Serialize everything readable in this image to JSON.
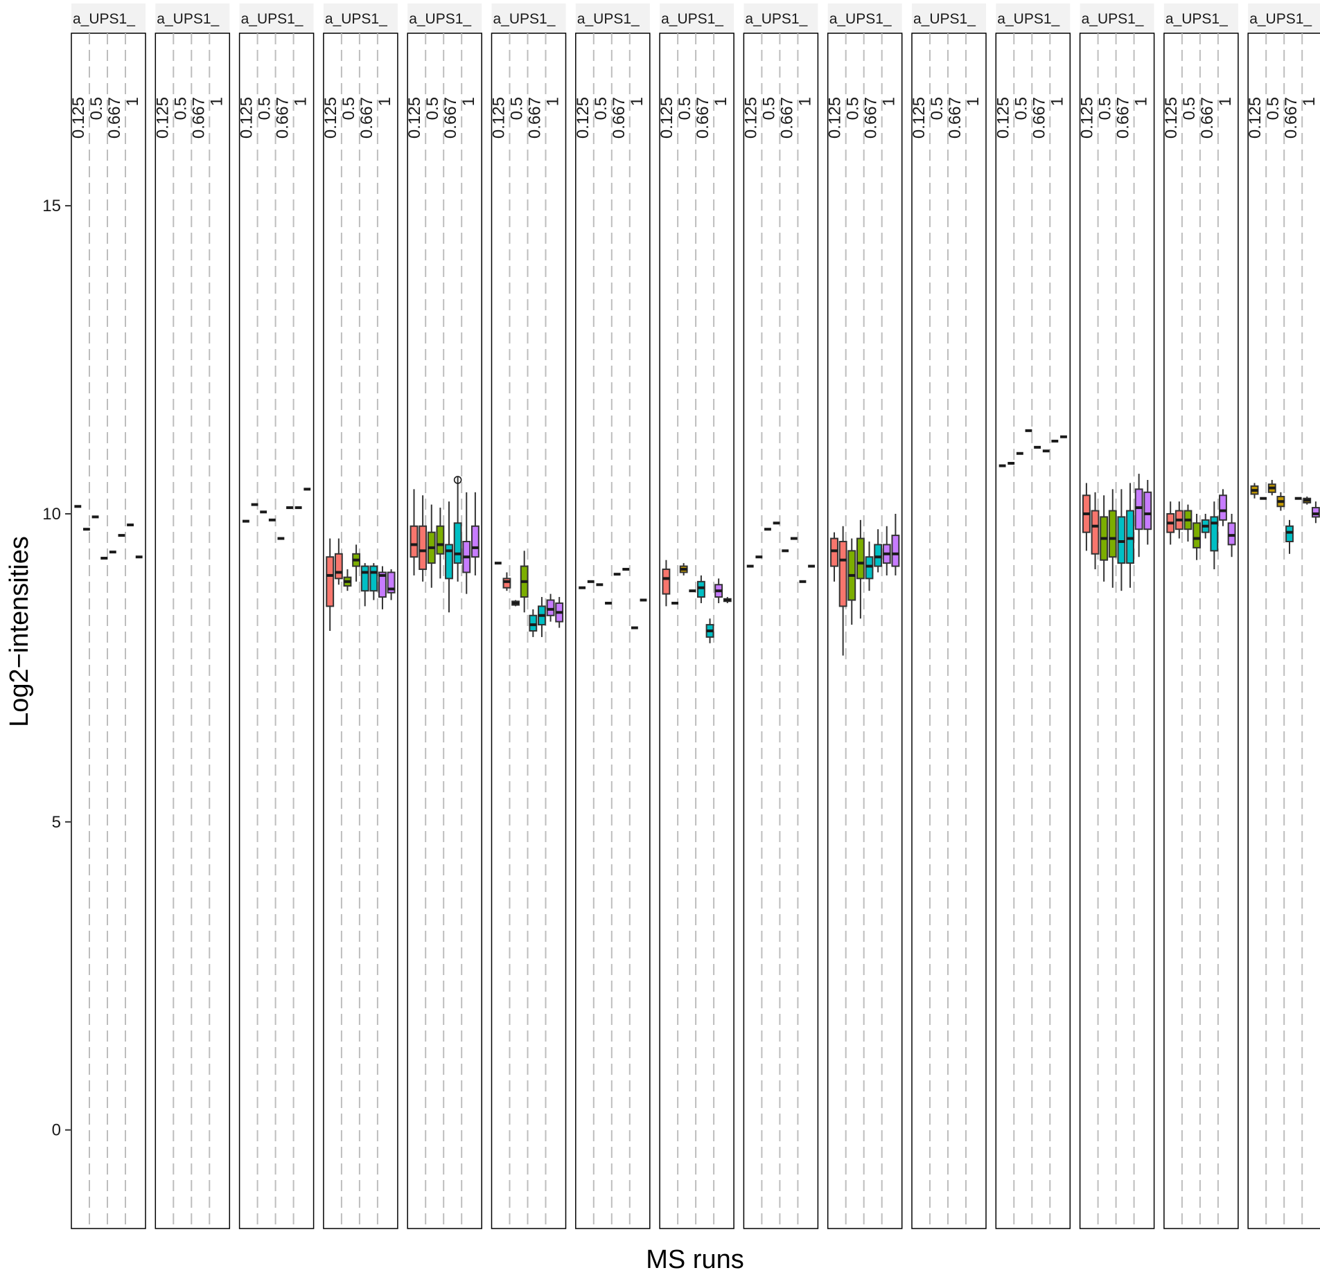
{
  "chart_data": {
    "type": "boxplot",
    "xlabel": "MS runs",
    "ylabel": "Log2−intensities",
    "ylim": [
      -1.6,
      17.8
    ],
    "y_ticks": [
      0,
      5,
      10,
      15
    ],
    "grid": false,
    "conc_levels": [
      "0.125",
      "0.5",
      "0.667",
      "1"
    ],
    "run_colors": [
      "#F8766D",
      "#C49A00",
      "#7CAE00",
      "#00BFC4",
      "#00A9FF",
      "#C77CFF"
    ],
    "panels": [
      {
        "label": "a_UPS1_",
        "boxes": [
          {
            "med": 10.12
          },
          {
            "med": 9.75
          },
          {
            "med": 9.95
          },
          {
            "med": 9.28
          },
          {
            "med": 9.38
          },
          {
            "med": 9.65
          },
          {
            "med": 9.82
          },
          {
            "med": 9.3
          }
        ]
      },
      {
        "label": "a_UPS1_",
        "boxes": []
      },
      {
        "label": "a_UPS1_",
        "boxes": [
          {
            "med": 9.88
          },
          {
            "med": 10.15
          },
          {
            "med": 10.03
          },
          {
            "med": 9.9
          },
          {
            "med": 9.6
          },
          {
            "med": 10.1
          },
          {
            "med": 10.1
          },
          {
            "med": 10.4
          }
        ]
      },
      {
        "label": "a_UPS1_",
        "boxes": [
          {
            "min": 8.1,
            "q1": 8.5,
            "med": 9.0,
            "q3": 9.3,
            "max": 9.6,
            "c": 0
          },
          {
            "min": 8.85,
            "q1": 8.95,
            "med": 9.05,
            "q3": 9.35,
            "max": 9.6,
            "c": 0
          },
          {
            "min": 8.75,
            "q1": 8.83,
            "med": 8.9,
            "q3": 8.97,
            "max": 9.1,
            "c": 2
          },
          {
            "min": 8.9,
            "q1": 9.15,
            "med": 9.25,
            "q3": 9.35,
            "max": 9.5,
            "c": 2
          },
          {
            "min": 8.5,
            "q1": 8.75,
            "med": 9.05,
            "q3": 9.15,
            "max": 9.2,
            "c": 3
          },
          {
            "min": 8.6,
            "q1": 8.75,
            "med": 9.05,
            "q3": 9.15,
            "max": 9.2,
            "c": 3
          },
          {
            "min": 8.45,
            "q1": 8.65,
            "med": 9.0,
            "q3": 9.05,
            "max": 9.15,
            "c": 5
          },
          {
            "min": 8.6,
            "q1": 8.72,
            "med": 8.78,
            "q3": 9.05,
            "max": 9.1,
            "c": 5
          }
        ]
      },
      {
        "label": "a_UPS1_",
        "boxes": [
          {
            "min": 9.0,
            "q1": 9.3,
            "med": 9.5,
            "q3": 9.8,
            "max": 10.4,
            "c": 0
          },
          {
            "min": 8.9,
            "q1": 9.1,
            "med": 9.4,
            "q3": 9.8,
            "max": 10.3,
            "c": 0
          },
          {
            "min": 8.8,
            "q1": 9.2,
            "med": 9.45,
            "q3": 9.7,
            "max": 10.15,
            "c": 2
          },
          {
            "min": 8.95,
            "q1": 9.35,
            "med": 9.5,
            "q3": 9.8,
            "max": 10.1,
            "c": 2
          },
          {
            "min": 8.4,
            "q1": 8.95,
            "med": 9.4,
            "q3": 9.5,
            "max": 10.2,
            "c": 3
          },
          {
            "min": 8.9,
            "q1": 9.2,
            "med": 9.35,
            "q3": 9.85,
            "max": 10.6,
            "c": 3,
            "outliers": [
              10.55
            ]
          },
          {
            "min": 8.7,
            "q1": 9.05,
            "med": 9.3,
            "q3": 9.55,
            "max": 10.35,
            "c": 5
          },
          {
            "min": 9.0,
            "q1": 9.3,
            "med": 9.45,
            "q3": 9.8,
            "max": 10.35,
            "c": 5
          }
        ]
      },
      {
        "label": "a_UPS1_",
        "boxes": [
          {
            "med": 9.2
          },
          {
            "min": 8.75,
            "q1": 8.8,
            "med": 8.9,
            "q3": 8.95,
            "max": 9.05,
            "c": 0
          },
          {
            "min": 8.5,
            "q1": 8.52,
            "med": 8.55,
            "q3": 8.58,
            "max": 8.6,
            "c": 1
          },
          {
            "min": 8.4,
            "q1": 8.65,
            "med": 8.9,
            "q3": 9.15,
            "max": 9.4,
            "c": 2
          },
          {
            "min": 8.0,
            "q1": 8.1,
            "med": 8.2,
            "q3": 8.35,
            "max": 8.45,
            "c": 3
          },
          {
            "min": 8.0,
            "q1": 8.2,
            "med": 8.35,
            "q3": 8.5,
            "max": 8.65,
            "c": 3
          },
          {
            "min": 8.25,
            "q1": 8.35,
            "med": 8.45,
            "q3": 8.6,
            "max": 8.7,
            "c": 5
          },
          {
            "min": 8.15,
            "q1": 8.25,
            "med": 8.4,
            "q3": 8.55,
            "max": 8.65,
            "c": 5
          }
        ]
      },
      {
        "label": "a_UPS1_",
        "boxes": [
          {
            "med": 8.8
          },
          {
            "med": 8.9
          },
          {
            "med": 8.85
          },
          {
            "med": 8.55
          },
          {
            "med": 9.02
          },
          {
            "med": 9.1
          },
          {
            "med": 8.15
          },
          {
            "med": 8.6
          }
        ]
      },
      {
        "label": "a_UPS1_",
        "boxes": [
          {
            "min": 8.5,
            "q1": 8.7,
            "med": 8.95,
            "q3": 9.1,
            "max": 9.25,
            "c": 0
          },
          {
            "med": 8.55
          },
          {
            "min": 9.0,
            "q1": 9.05,
            "med": 9.1,
            "q3": 9.15,
            "max": 9.2,
            "c": 1
          },
          {
            "med": 8.75
          },
          {
            "min": 8.55,
            "q1": 8.65,
            "med": 8.8,
            "q3": 8.9,
            "max": 9.0,
            "c": 3
          },
          {
            "min": 7.9,
            "q1": 8.0,
            "med": 8.1,
            "q3": 8.2,
            "max": 8.3,
            "c": 3
          },
          {
            "min": 8.55,
            "q1": 8.65,
            "med": 8.75,
            "q3": 8.85,
            "max": 8.95,
            "c": 5
          },
          {
            "min": 8.55,
            "q1": 8.58,
            "med": 8.6,
            "q3": 8.62,
            "max": 8.65,
            "c": 0
          }
        ]
      },
      {
        "label": "a_UPS1_",
        "boxes": [
          {
            "med": 9.15
          },
          {
            "med": 9.3
          },
          {
            "med": 9.75
          },
          {
            "med": 9.85
          },
          {
            "med": 9.4
          },
          {
            "med": 9.6
          },
          {
            "med": 8.9
          },
          {
            "med": 9.15
          }
        ]
      },
      {
        "label": "a_UPS1_",
        "boxes": [
          {
            "min": 8.9,
            "q1": 9.15,
            "med": 9.4,
            "q3": 9.6,
            "max": 9.7,
            "c": 0
          },
          {
            "min": 7.7,
            "q1": 8.5,
            "med": 9.25,
            "q3": 9.55,
            "max": 9.8,
            "c": 0
          },
          {
            "min": 8.2,
            "q1": 8.6,
            "med": 9.0,
            "q3": 9.4,
            "max": 9.6,
            "c": 2
          },
          {
            "min": 8.3,
            "q1": 8.95,
            "med": 9.2,
            "q3": 9.6,
            "max": 9.9,
            "c": 2
          },
          {
            "min": 8.75,
            "q1": 8.95,
            "med": 9.15,
            "q3": 9.3,
            "max": 9.55,
            "c": 3
          },
          {
            "min": 9.05,
            "q1": 9.15,
            "med": 9.3,
            "q3": 9.5,
            "max": 9.75,
            "c": 3
          },
          {
            "min": 9.0,
            "q1": 9.2,
            "med": 9.35,
            "q3": 9.5,
            "max": 9.8,
            "c": 5
          },
          {
            "min": 9.0,
            "q1": 9.15,
            "med": 9.35,
            "q3": 9.65,
            "max": 10.0,
            "c": 5
          }
        ]
      },
      {
        "label": "a_UPS1_",
        "boxes": []
      },
      {
        "label": "a_UPS1_",
        "boxes": [
          {
            "med": 10.78
          },
          {
            "med": 10.82
          },
          {
            "med": 10.98
          },
          {
            "med": 11.35
          },
          {
            "med": 11.08
          },
          {
            "med": 11.02
          },
          {
            "med": 11.18
          },
          {
            "med": 11.25
          }
        ]
      },
      {
        "label": "a_UPS1_",
        "boxes": [
          {
            "min": 9.4,
            "q1": 9.7,
            "med": 10.0,
            "q3": 10.3,
            "max": 10.5,
            "c": 0
          },
          {
            "min": 9.1,
            "q1": 9.35,
            "med": 9.8,
            "q3": 10.05,
            "max": 10.35,
            "c": 0
          },
          {
            "min": 8.9,
            "q1": 9.25,
            "med": 9.6,
            "q3": 9.95,
            "max": 10.3,
            "c": 2
          },
          {
            "min": 8.8,
            "q1": 9.3,
            "med": 9.6,
            "q3": 10.05,
            "max": 10.4,
            "c": 2
          },
          {
            "min": 8.75,
            "q1": 9.2,
            "med": 9.55,
            "q3": 9.95,
            "max": 10.4,
            "c": 3
          },
          {
            "min": 8.8,
            "q1": 9.2,
            "med": 9.6,
            "q3": 10.05,
            "max": 10.5,
            "c": 3
          },
          {
            "min": 9.3,
            "q1": 9.75,
            "med": 10.1,
            "q3": 10.4,
            "max": 10.65,
            "c": 5
          },
          {
            "min": 9.5,
            "q1": 9.75,
            "med": 10.0,
            "q3": 10.35,
            "max": 10.55,
            "c": 5
          }
        ]
      },
      {
        "label": "a_UPS1_",
        "boxes": [
          {
            "min": 9.5,
            "q1": 9.7,
            "med": 9.85,
            "q3": 10.0,
            "max": 10.2,
            "c": 0
          },
          {
            "min": 9.6,
            "q1": 9.75,
            "med": 9.9,
            "q3": 10.05,
            "max": 10.2,
            "c": 0
          },
          {
            "min": 9.55,
            "q1": 9.75,
            "med": 9.9,
            "q3": 10.05,
            "max": 10.15,
            "c": 2
          },
          {
            "min": 9.25,
            "q1": 9.45,
            "med": 9.6,
            "q3": 9.85,
            "max": 10.0,
            "c": 2
          },
          {
            "min": 9.6,
            "q1": 9.7,
            "med": 9.8,
            "q3": 9.9,
            "max": 10.0,
            "c": 3
          },
          {
            "min": 9.1,
            "q1": 9.4,
            "med": 9.85,
            "q3": 9.95,
            "max": 10.2,
            "c": 3
          },
          {
            "min": 9.8,
            "q1": 9.9,
            "med": 10.05,
            "q3": 10.3,
            "max": 10.4,
            "c": 5
          },
          {
            "min": 9.3,
            "q1": 9.5,
            "med": 9.65,
            "q3": 9.85,
            "max": 10.0,
            "c": 5
          }
        ]
      },
      {
        "label": "a_UPS1_",
        "boxes": [
          {
            "min": 10.25,
            "q1": 10.32,
            "med": 10.38,
            "q3": 10.45,
            "max": 10.5,
            "c": 1
          },
          {
            "med": 10.25
          },
          {
            "min": 10.3,
            "q1": 10.35,
            "med": 10.42,
            "q3": 10.48,
            "max": 10.55,
            "c": 1
          },
          {
            "min": 10.05,
            "q1": 10.12,
            "med": 10.2,
            "q3": 10.28,
            "max": 10.35,
            "c": 1
          },
          {
            "min": 9.35,
            "q1": 9.55,
            "med": 9.7,
            "q3": 9.8,
            "max": 9.9,
            "c": 3
          },
          {
            "med": 10.25
          },
          {
            "min": 10.15,
            "q1": 10.18,
            "med": 10.22,
            "q3": 10.25,
            "max": 10.28,
            "c": 1
          },
          {
            "min": 9.85,
            "q1": 9.95,
            "med": 10.0,
            "q3": 10.1,
            "max": 10.2,
            "c": 5
          }
        ]
      }
    ]
  }
}
